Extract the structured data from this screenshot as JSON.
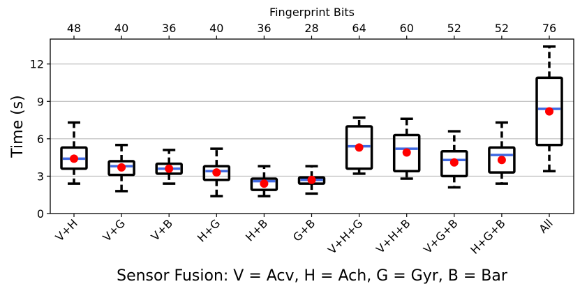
{
  "chart_data": {
    "type": "box",
    "title": "",
    "xlabel": "Sensor Fusion: V = Acv, H = Ach, G = Gyr, B = Bar",
    "ylabel": "Time (s)",
    "top_axis_label": "Fingerprint Bits",
    "ylim": [
      0,
      14
    ],
    "yticks": [
      0,
      3,
      6,
      9,
      12
    ],
    "grid": "horizontal",
    "categories": [
      "V+H",
      "V+G",
      "V+B",
      "H+G",
      "H+B",
      "G+B",
      "V+H+G",
      "V+H+B",
      "V+G+B",
      "H+G+B",
      "All"
    ],
    "fingerprint_bits": [
      "48",
      "40",
      "36",
      "40",
      "36",
      "28",
      "64",
      "60",
      "52",
      "52",
      "76"
    ],
    "series": [
      {
        "name": "V+H",
        "whisker_low": 2.4,
        "q1": 3.6,
        "median": 4.4,
        "q3": 5.3,
        "whisker_high": 7.3,
        "mean": 4.4
      },
      {
        "name": "V+G",
        "whisker_low": 1.8,
        "q1": 3.1,
        "median": 3.8,
        "q3": 4.2,
        "whisker_high": 5.5,
        "mean": 3.7
      },
      {
        "name": "V+B",
        "whisker_low": 2.4,
        "q1": 3.2,
        "median": 3.6,
        "q3": 4.0,
        "whisker_high": 5.1,
        "mean": 3.6
      },
      {
        "name": "H+G",
        "whisker_low": 1.4,
        "q1": 2.7,
        "median": 3.4,
        "q3": 3.8,
        "whisker_high": 5.2,
        "mean": 3.3
      },
      {
        "name": "H+B",
        "whisker_low": 1.4,
        "q1": 1.9,
        "median": 2.6,
        "q3": 2.8,
        "whisker_high": 3.8,
        "mean": 2.4
      },
      {
        "name": "G+B",
        "whisker_low": 1.6,
        "q1": 2.4,
        "median": 2.7,
        "q3": 2.9,
        "whisker_high": 3.8,
        "mean": 2.7
      },
      {
        "name": "V+H+G",
        "whisker_low": 3.2,
        "q1": 3.6,
        "median": 5.4,
        "q3": 7.0,
        "whisker_high": 7.7,
        "mean": 5.3
      },
      {
        "name": "V+H+B",
        "whisker_low": 2.8,
        "q1": 3.4,
        "median": 5.2,
        "q3": 6.3,
        "whisker_high": 7.6,
        "mean": 4.9
      },
      {
        "name": "V+G+B",
        "whisker_low": 2.1,
        "q1": 3.0,
        "median": 4.3,
        "q3": 5.0,
        "whisker_high": 6.6,
        "mean": 4.1
      },
      {
        "name": "H+G+B",
        "whisker_low": 2.4,
        "q1": 3.3,
        "median": 4.7,
        "q3": 5.3,
        "whisker_high": 7.3,
        "mean": 4.3
      },
      {
        "name": "All",
        "whisker_low": 3.4,
        "q1": 5.5,
        "median": 8.4,
        "q3": 10.9,
        "whisker_high": 13.4,
        "mean": 8.2
      }
    ],
    "colors": {
      "box": "#000000",
      "median": "#4169e1",
      "mean": "#ff0000",
      "grid": "#b0b0b0"
    }
  }
}
